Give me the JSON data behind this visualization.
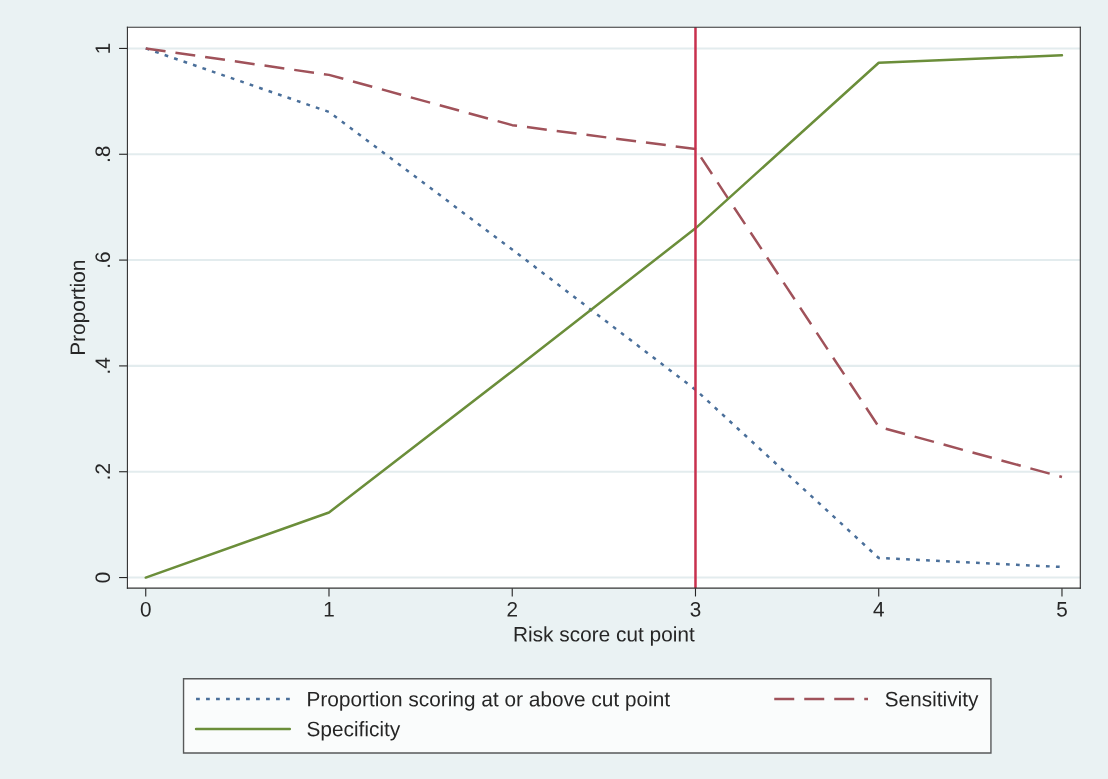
{
  "chart_data": {
    "type": "line",
    "xlabel": "Risk score cut point",
    "ylabel": "Proportion",
    "x": [
      0,
      1,
      2,
      3,
      4,
      5
    ],
    "xlim": [
      -0.1,
      5.1
    ],
    "xticks": [
      0,
      1,
      2,
      3,
      4,
      5
    ],
    "ylim": [
      -0.02,
      1.04
    ],
    "yticks": [
      {
        "value": 0,
        "label": "0"
      },
      {
        "value": 0.2,
        "label": ".2"
      },
      {
        "value": 0.4,
        "label": ".4"
      },
      {
        "value": 0.6,
        "label": ".6"
      },
      {
        "value": 0.8,
        "label": ".8"
      },
      {
        "value": 1,
        "label": "1"
      }
    ],
    "series": [
      {
        "name": "Proportion scoring at or above cut point",
        "color": "#4a6f9a",
        "line_style": "dotted",
        "values": [
          1.0,
          0.88,
          0.62,
          0.355,
          0.037,
          0.02
        ]
      },
      {
        "name": "Sensitivity",
        "color": "#a0525a",
        "line_style": "dashed",
        "values": [
          1.0,
          0.95,
          0.855,
          0.81,
          0.285,
          0.19
        ]
      },
      {
        "name": "Specificity",
        "color": "#6b8e3a",
        "line_style": "solid",
        "values": [
          0.0,
          0.123,
          0.39,
          0.66,
          0.973,
          0.987
        ]
      }
    ],
    "ref_lines": [
      {
        "axis": "x",
        "value": 3,
        "color": "#c8314e"
      }
    ],
    "grid": "y",
    "legend": "bottom",
    "marker": "none"
  }
}
